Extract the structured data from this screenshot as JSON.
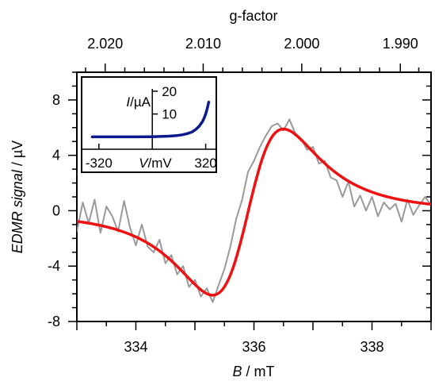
{
  "chart_data": [
    {
      "type": "line",
      "role": "main",
      "xlabel_var": "B",
      "xlabel_unit": " / mT",
      "ylabel_var": "EDMR signal",
      "ylabel_unit": " / µV",
      "top_axis_label": "g-factor",
      "xlim": [
        333,
        339
      ],
      "ylim": [
        -8,
        10
      ],
      "x_ticks": [
        334,
        336,
        338
      ],
      "x_tick_labels": [
        "334",
        "336",
        "338"
      ],
      "y_ticks": [
        -8,
        -4,
        0,
        4,
        8
      ],
      "y_tick_labels": [
        "-8",
        "-4",
        "0",
        "4",
        "8"
      ],
      "top_ticks": [
        {
          "label": "2.020",
          "at_B": 333.48
        },
        {
          "label": "2.010",
          "at_B": 335.14
        },
        {
          "label": "2.000",
          "at_B": 336.81
        },
        {
          "label": "1.990",
          "at_B": 338.48
        }
      ],
      "series": [
        {
          "role": "measured",
          "color": "#999999",
          "x": [
            333.0,
            333.1,
            333.2,
            333.3,
            333.4,
            333.5,
            333.6,
            333.7,
            333.8,
            333.9,
            334.0,
            334.1,
            334.2,
            334.3,
            334.4,
            334.5,
            334.6,
            334.7,
            334.8,
            334.9,
            335.0,
            335.1,
            335.2,
            335.3,
            335.4,
            335.5,
            335.6,
            335.7,
            335.8,
            335.9,
            336.0,
            336.1,
            336.2,
            336.3,
            336.4,
            336.5,
            336.6,
            336.7,
            336.8,
            336.9,
            337.0,
            337.1,
            337.2,
            337.3,
            337.4,
            337.5,
            337.6,
            337.7,
            337.8,
            337.9,
            338.0,
            338.1,
            338.2,
            338.3,
            338.4,
            338.5,
            338.6,
            338.7,
            338.8,
            338.9,
            339.0
          ],
          "y": [
            -1.5,
            0.6,
            -0.9,
            0.8,
            -1.6,
            0.3,
            -0.4,
            -1.5,
            0.7,
            -1.2,
            -2.5,
            -1.0,
            -2.6,
            -3.0,
            -2.1,
            -3.8,
            -3.2,
            -4.6,
            -4.0,
            -5.5,
            -5.0,
            -6.2,
            -5.6,
            -6.6,
            -5.4,
            -4.2,
            -2.6,
            -0.6,
            0.8,
            2.8,
            3.6,
            4.6,
            5.4,
            6.1,
            6.3,
            5.8,
            6.6,
            5.6,
            5.2,
            4.4,
            4.6,
            3.4,
            3.6,
            2.4,
            2.2,
            1.0,
            2.1,
            0.3,
            1.1,
            0.0,
            1.0,
            -0.4,
            0.6,
            0.1,
            0.5,
            -0.8,
            0.8,
            -0.3,
            0.4,
            1.0,
            0.4
          ]
        },
        {
          "role": "fit",
          "color": "#ee1111",
          "center": 335.9,
          "half_peak_to_peak": 0.6,
          "amplitude": 6.0,
          "offset": -0.1
        }
      ]
    },
    {
      "type": "line",
      "role": "inset",
      "xlabel_var": "V",
      "xlabel_unit": "/mV",
      "ylabel_var": "I",
      "ylabel_unit": "/µA",
      "xlim": [
        -400,
        360
      ],
      "ylim": [
        -3,
        21
      ],
      "x_tick_labels": [
        "-320",
        "320"
      ],
      "x_ticks": [
        -320,
        320
      ],
      "y_tick_labels": [
        "10",
        "20"
      ],
      "y_ticks": [
        10,
        20
      ],
      "series": [
        {
          "color": "#0a1a8c",
          "x": [
            -360,
            -300,
            -200,
            -100,
            0,
            50,
            100,
            150,
            180,
            210,
            240,
            260,
            280,
            300,
            310,
            320,
            330,
            338
          ],
          "y": [
            0,
            0,
            0,
            0,
            0.05,
            0.15,
            0.3,
            0.6,
            0.9,
            1.4,
            2.2,
            3.2,
            4.6,
            6.6,
            8.1,
            10.0,
            12.6,
            15.2
          ]
        }
      ]
    }
  ]
}
